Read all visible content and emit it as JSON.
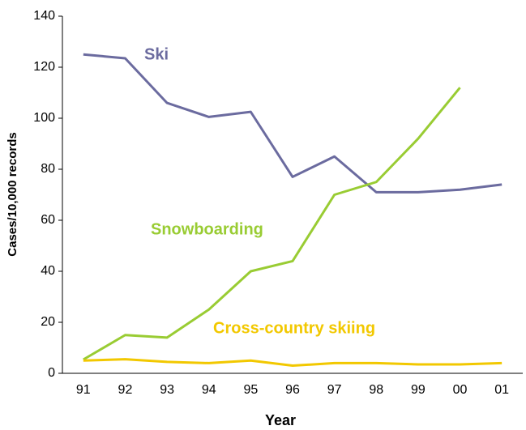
{
  "chart_data": {
    "type": "line",
    "x_label": "Year",
    "y_label": "Cases/10,000 records",
    "categories": [
      "91",
      "92",
      "93",
      "94",
      "95",
      "96",
      "97",
      "98",
      "99",
      "00",
      "01"
    ],
    "ylim": [
      0,
      140
    ],
    "yticks": [
      0,
      20,
      40,
      60,
      80,
      100,
      120,
      140
    ],
    "series": [
      {
        "name": "Ski",
        "color": "#6b6b9f",
        "values": [
          125,
          123.5,
          106,
          100.5,
          102.5,
          77,
          85,
          71,
          71,
          72,
          74
        ]
      },
      {
        "name": "Snowboarding",
        "color": "#99cc33",
        "values": [
          5.4,
          15,
          14,
          25,
          40,
          44,
          70,
          75,
          92,
          112,
          null
        ]
      },
      {
        "name": "Cross-country skiing",
        "color": "#f2c800",
        "values": [
          5,
          5.5,
          4.5,
          4,
          5,
          3,
          4,
          4,
          3.5,
          3.5,
          4
        ]
      }
    ]
  }
}
